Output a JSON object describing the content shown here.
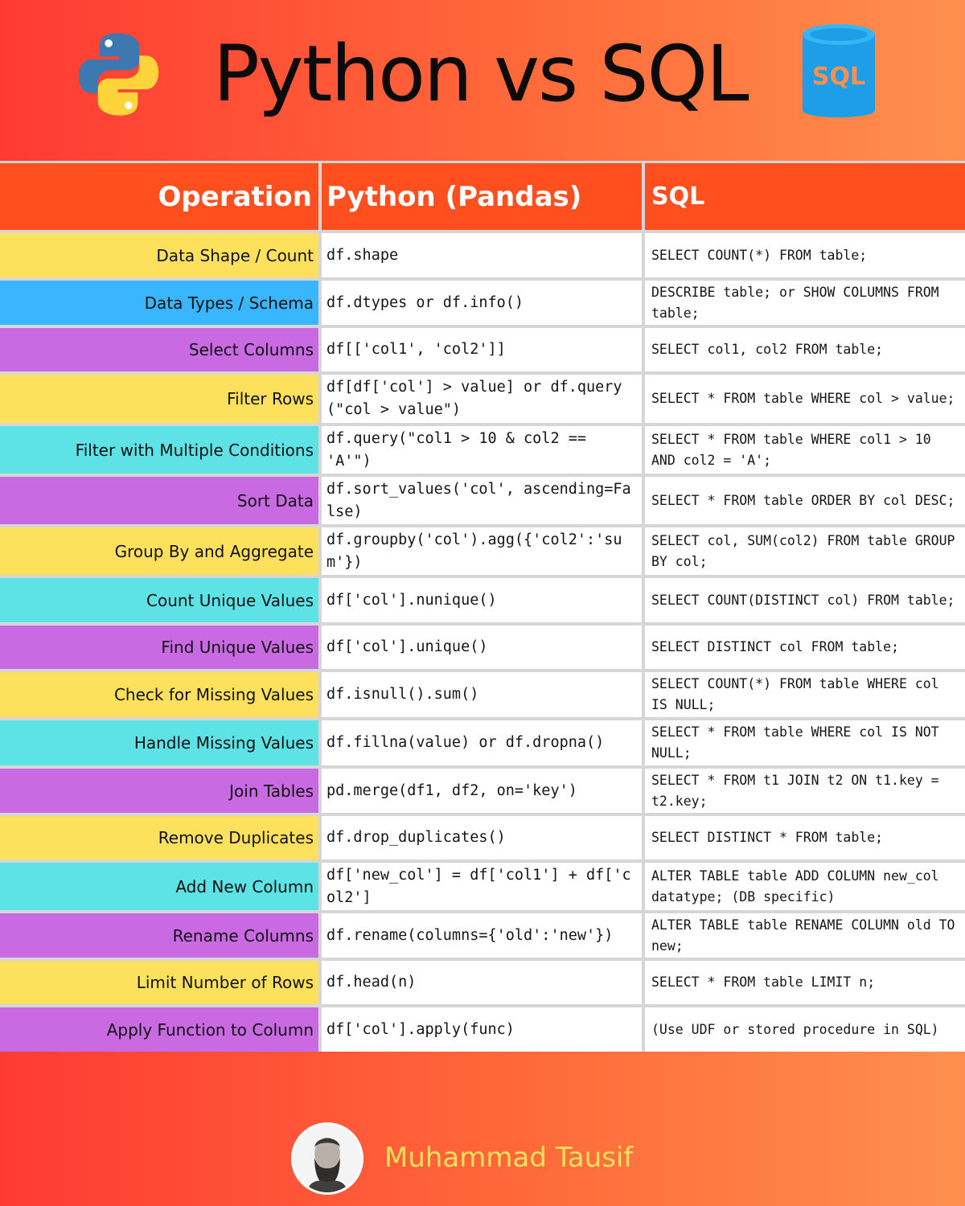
{
  "header": {
    "title": "Python vs SQL",
    "sql_logo_text": "SQL"
  },
  "table": {
    "columns": [
      "Operation",
      "Python (Pandas)",
      "SQL"
    ],
    "rows": [
      {
        "op": "Data Shape / Count",
        "python": "df.shape",
        "sql": "SELECT COUNT(*) FROM table;"
      },
      {
        "op": "Data Types / Schema",
        "python": "df.dtypes or df.info()",
        "sql": "DESCRIBE table; or SHOW COLUMNS FROM table;"
      },
      {
        "op": "Select Columns",
        "python": "df[['col1', 'col2']]",
        "sql": "SELECT col1, col2 FROM table;"
      },
      {
        "op": "Filter Rows",
        "python": "df[df['col'] > value] or df.query(\"col > value\")",
        "sql": "SELECT * FROM table WHERE col > value;"
      },
      {
        "op": "Filter with Multiple Conditions",
        "python": "df.query(\"col1 > 10 & col2 == 'A'\")",
        "sql": "SELECT * FROM table WHERE col1 > 10 AND col2 = 'A';"
      },
      {
        "op": "Sort Data",
        "python": "df.sort_values('col', ascending=False)",
        "sql": "SELECT * FROM table ORDER BY col DESC;"
      },
      {
        "op": "Group By and Aggregate",
        "python": "df.groupby('col').agg({'col2':'sum'})",
        "sql": "SELECT col, SUM(col2) FROM table GROUP BY col;"
      },
      {
        "op": "Count Unique Values",
        "python": "df['col'].nunique()",
        "sql": "SELECT COUNT(DISTINCT col) FROM table;"
      },
      {
        "op": "Find Unique Values",
        "python": "df['col'].unique()",
        "sql": "SELECT DISTINCT col FROM table;"
      },
      {
        "op": "Check for Missing Values",
        "python": "df.isnull().sum()",
        "sql": "SELECT COUNT(*) FROM table WHERE col IS NULL;"
      },
      {
        "op": "Handle Missing Values",
        "python": "df.fillna(value) or df.dropna()",
        "sql": "SELECT * FROM table WHERE col IS NOT NULL;"
      },
      {
        "op": "Join Tables",
        "python": "pd.merge(df1, df2, on='key')",
        "sql": "SELECT * FROM t1 JOIN t2 ON t1.key = t2.key;"
      },
      {
        "op": "Remove Duplicates",
        "python": "df.drop_duplicates()",
        "sql": "SELECT DISTINCT * FROM table;"
      },
      {
        "op": "Add New Column",
        "python": "df['new_col'] = df['col1'] + df['col2']",
        "sql": "ALTER TABLE table ADD COLUMN new_col datatype; (DB specific)"
      },
      {
        "op": "Rename Columns",
        "python": "df.rename(columns={'old':'new'})",
        "sql": "ALTER TABLE table RENAME COLUMN old TO new;"
      },
      {
        "op": "Limit Number of Rows",
        "python": "df.head(n)",
        "sql": "SELECT * FROM table LIMIT n;"
      },
      {
        "op": "Apply Function to Column",
        "python": "df['col'].apply(func)",
        "sql": "(Use UDF or stored procedure in SQL)"
      }
    ]
  },
  "footer": {
    "author": "Muhammad Tausif"
  },
  "colors": {
    "header_bg": "#ff4f1e",
    "yellow": "#fde05c",
    "blue": "#38b6ff",
    "purple": "#c96ae2",
    "cyan": "#5de2e6",
    "author_text": "#fde05c"
  }
}
